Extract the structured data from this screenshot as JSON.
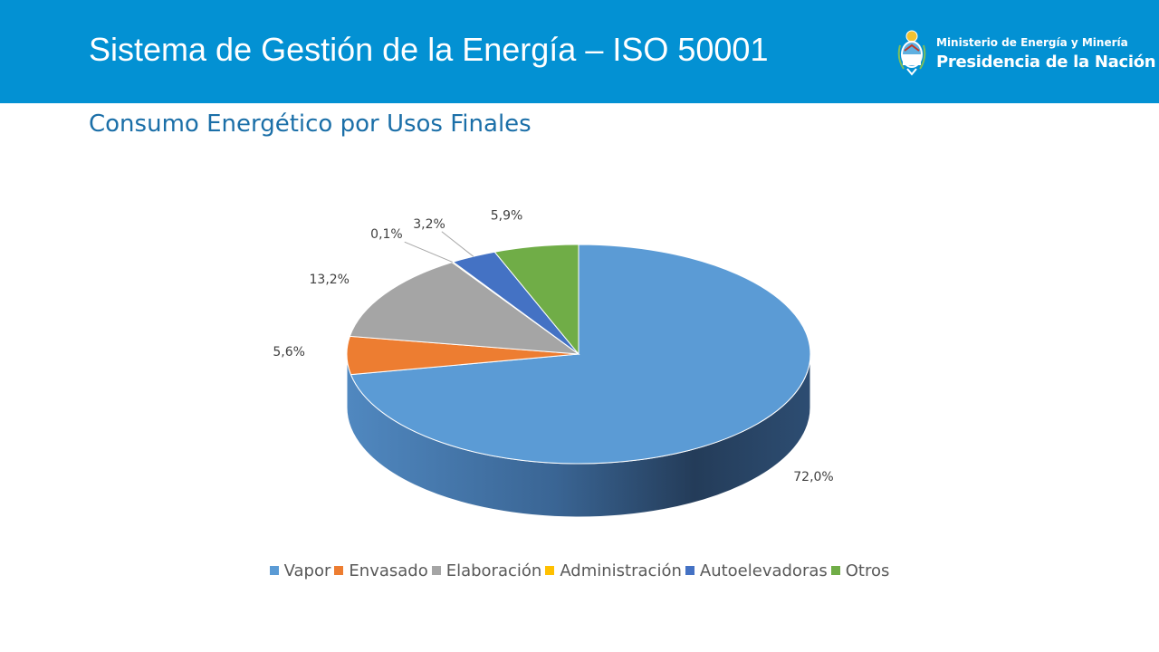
{
  "header": {
    "title": "Sistema de Gestión de la Energía – ISO 50001",
    "ministry": "Ministerio de Energía y Minería",
    "presidency": "Presidencia de la Nación"
  },
  "subtitle": "Consumo Energético por Usos Finales",
  "colors": {
    "header_bg": "#0391d3",
    "subtitle": "#1b6fa8"
  },
  "chart_data": {
    "type": "pie",
    "style": "3d",
    "categories": [
      "Vapor",
      "Envasado",
      "Elaboración",
      "Administración",
      "Autoelevadoras",
      "Otros"
    ],
    "values": [
      72.0,
      5.6,
      13.2,
      0.1,
      3.2,
      5.9
    ],
    "labels": [
      "72,0%",
      "5,6%",
      "13,2%",
      "0,1%",
      "3,2%",
      "5,9%"
    ],
    "colors": [
      "#5b9bd5",
      "#ed7d31",
      "#a5a5a5",
      "#ffc000",
      "#4472c4",
      "#70ad47"
    ],
    "legend_position": "bottom"
  }
}
